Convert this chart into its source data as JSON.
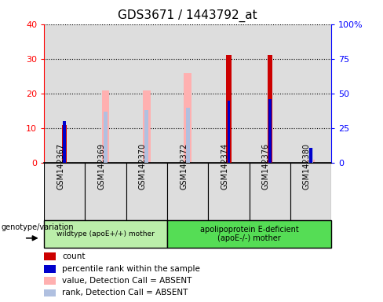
{
  "title": "GDS3671 / 1443792_at",
  "samples": [
    "GSM142367",
    "GSM142369",
    "GSM142370",
    "GSM142372",
    "GSM142374",
    "GSM142376",
    "GSM142380"
  ],
  "count_values": [
    11,
    0,
    0,
    0,
    31,
    31,
    0
  ],
  "percentile_rank_pct": [
    30,
    0,
    0,
    0,
    45,
    46,
    11
  ],
  "absent_value": [
    0,
    21,
    21,
    26,
    0,
    0,
    1
  ],
  "absent_rank_pct": [
    0,
    37,
    38,
    40,
    0,
    0,
    11
  ],
  "ylim_left": [
    0,
    40
  ],
  "ylim_right": [
    0,
    100
  ],
  "yticks_left": [
    0,
    10,
    20,
    30,
    40
  ],
  "yticks_right": [
    0,
    25,
    50,
    75,
    100
  ],
  "yticklabels_left": [
    "0",
    "10",
    "20",
    "30",
    "40"
  ],
  "yticklabels_right": [
    "0",
    "25",
    "50",
    "75",
    "100%"
  ],
  "group1_label": "wildtype (apoE+/+) mother",
  "group2_label": "apolipoprotein E-deficient\n(apoE-/-) mother",
  "genotype_label": "genotype/variation",
  "color_count": "#cc0000",
  "color_percentile": "#0000cc",
  "color_absent_value": "#ffb0b0",
  "color_absent_rank": "#b0c0e0",
  "color_group1_bg": "#bbeeaa",
  "color_group2_bg": "#55dd55",
  "color_panel_bg": "#dddddd",
  "legend_items": [
    {
      "label": "count",
      "color": "#cc0000"
    },
    {
      "label": "percentile rank within the sample",
      "color": "#0000cc"
    },
    {
      "label": "value, Detection Call = ABSENT",
      "color": "#ffb0b0"
    },
    {
      "label": "rank, Detection Call = ABSENT",
      "color": "#b0c0e0"
    }
  ]
}
